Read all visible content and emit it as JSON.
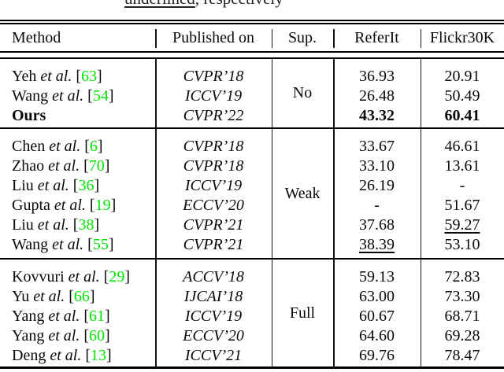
{
  "caption_fragment": {
    "underlined": "underlined",
    "rest": ", respectively"
  },
  "colors": {
    "citation_green": "#00e400",
    "rule_black": "#000000",
    "text": "#0a0a0a"
  },
  "table": {
    "cite_open": "[",
    "cite_close": "]",
    "headers": {
      "method": "Method",
      "published": "Published on",
      "sup": "Sup.",
      "referit": "ReferIt",
      "flickr": "Flickr30K"
    },
    "blocks": [
      {
        "sup": "No",
        "rows": [
          {
            "author": "Yeh",
            "etal": "et al.",
            "cite": "63",
            "venue": "CVPR’18",
            "referit": "36.93",
            "flickr": "20.91"
          },
          {
            "author": "Wang",
            "etal": "et al.",
            "cite": "54",
            "venue": "ICCV’19",
            "referit": "26.48",
            "flickr": "50.49"
          },
          {
            "author": "Ours",
            "method_bold": true,
            "venue": "CVPR’22",
            "referit": "43.32",
            "flickr": "60.41",
            "referit_bold": true,
            "flickr_bold": true
          }
        ]
      },
      {
        "sup": "Weak",
        "rows": [
          {
            "author": "Chen",
            "etal": "et al.",
            "cite": "6",
            "venue": "CVPR’18",
            "referit": "33.67",
            "flickr": "46.61"
          },
          {
            "author": "Zhao",
            "etal": "et al.",
            "cite": "70",
            "venue": "CVPR’18",
            "referit": "33.10",
            "flickr": "13.61"
          },
          {
            "author": "Liu",
            "etal": "et al.",
            "cite": "36",
            "venue": "ICCV’19",
            "referit": "26.19",
            "flickr": "-"
          },
          {
            "author": "Gupta",
            "etal": "et al.",
            "cite": "19",
            "venue": "ECCV’20",
            "referit": "-",
            "flickr": "51.67"
          },
          {
            "author": "Liu",
            "etal": "et al.",
            "cite": "38",
            "venue": "CVPR’21",
            "referit": "37.68",
            "flickr": "59.27",
            "flickr_underline": true
          },
          {
            "author": "Wang",
            "etal": "et al.",
            "cite": "55",
            "venue": "CVPR’21",
            "referit": "38.39",
            "flickr": "53.10",
            "referit_underline": true
          }
        ]
      },
      {
        "sup": "Full",
        "rows": [
          {
            "author": "Kovvuri",
            "etal": "et al.",
            "cite": "29",
            "venue": "ACCV’18",
            "referit": "59.13",
            "flickr": "72.83"
          },
          {
            "author": "Yu",
            "etal": "et al.",
            "cite": "66",
            "venue": "IJCAI’18",
            "referit": "63.00",
            "flickr": "73.30"
          },
          {
            "author": "Yang",
            "etal": "et al.",
            "cite": "61",
            "venue": "ICCV’19",
            "referit": "60.67",
            "flickr": "68.71"
          },
          {
            "author": "Yang",
            "etal": "et al.",
            "cite": "60",
            "venue": "ECCV’20",
            "referit": "64.60",
            "flickr": "69.28"
          },
          {
            "author": "Deng",
            "etal": "et al.",
            "cite": "13",
            "venue": "ICCV’21",
            "referit": "69.76",
            "flickr": "78.47"
          }
        ]
      }
    ]
  }
}
